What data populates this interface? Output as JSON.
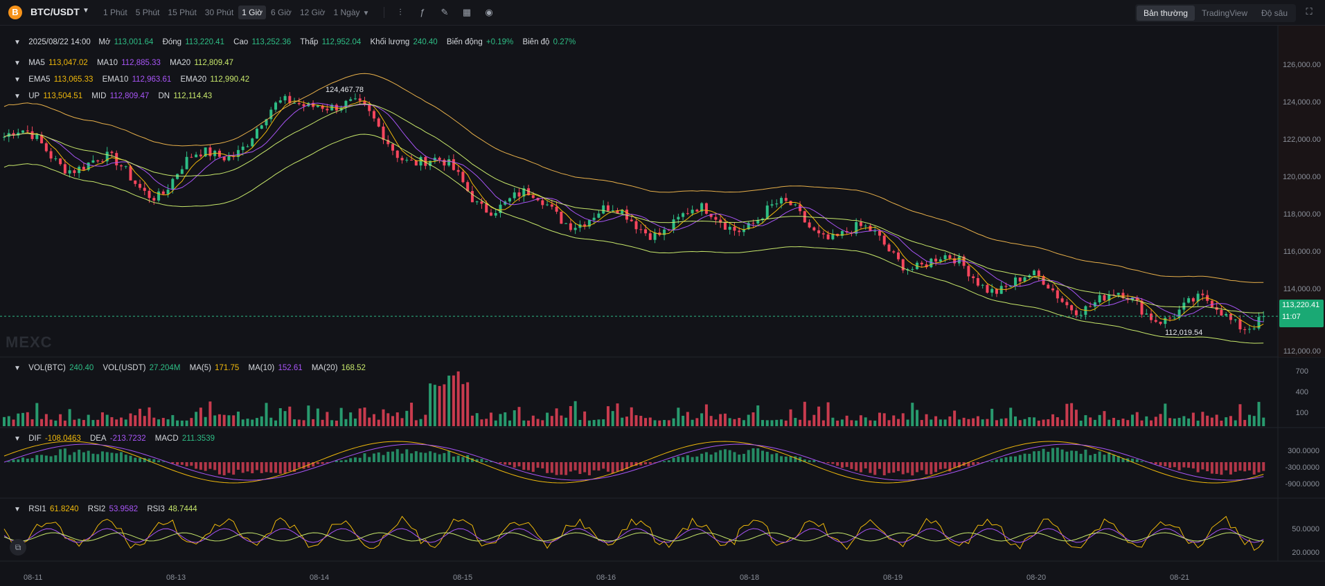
{
  "header": {
    "coin_icon": "B",
    "pair": "BTC/USDT",
    "intervals": [
      "1 Phút",
      "5 Phút",
      "15 Phút",
      "30 Phút",
      "1 Giờ",
      "6 Giờ",
      "12 Giờ",
      "1 Ngày"
    ],
    "active_interval": "1 Giờ",
    "tools": [
      "indicators-icon",
      "formula-icon",
      "draw-icon",
      "layout-icon",
      "screenshot-icon"
    ],
    "modes": [
      "Bản thường",
      "TradingView",
      "Độ sâu"
    ],
    "active_mode": "Bản thường"
  },
  "ohlc": {
    "date": "2025/08/22 14:00",
    "open_label": "Mở",
    "open": "113,001.64",
    "close_label": "Đóng",
    "close": "113,220.41",
    "high_label": "Cao",
    "high": "113,252.36",
    "low_label": "Thấp",
    "low": "112,952.04",
    "vol_label": "Khối lượng",
    "vol": "240.40",
    "change_label": "Biến động",
    "change": "+0.19%",
    "amp_label": "Biên độ",
    "amp": "0.27%"
  },
  "ma": {
    "ma5_label": "MA5",
    "ma5": "113,047.02",
    "ma10_label": "MA10",
    "ma10": "112,885.33",
    "ma20_label": "MA20",
    "ma20": "112,809.47"
  },
  "ema": {
    "ema5_label": "EMA5",
    "ema5": "113,065.33",
    "ema10_label": "EMA10",
    "ema10": "112,963.61",
    "ema20_label": "EMA20",
    "ema20": "112,990.42"
  },
  "boll": {
    "up_label": "UP",
    "up": "113,504.51",
    "mid_label": "MID",
    "mid": "112,809.47",
    "dn_label": "DN",
    "dn": "112,114.43"
  },
  "volume": {
    "vbtc_label": "VOL(BTC)",
    "vbtc": "240.40",
    "vusdt_label": "VOL(USDT)",
    "vusdt": "27.204M",
    "ma5_label": "MA(5)",
    "ma5": "171.75",
    "ma10_label": "MA(10)",
    "ma10": "152.61",
    "ma20_label": "MA(20)",
    "ma20": "168.52"
  },
  "macd": {
    "dif_label": "DIF",
    "dif": "-108.0463",
    "dea_label": "DEA",
    "dea": "-213.7232",
    "macd_label": "MACD",
    "macd": "211.3539"
  },
  "rsi": {
    "rsi1_label": "RSI1",
    "rsi1": "61.8240",
    "rsi2_label": "RSI2",
    "rsi2": "53.9582",
    "rsi3_label": "RSI3",
    "rsi3": "48.7444"
  },
  "price_axis": [
    "126,000.00",
    "124,000.00",
    "122,000.00",
    "120,000.00",
    "118,000.00",
    "116,000.00",
    "114,000.00",
    "112,000.00"
  ],
  "vol_axis": [
    "700",
    "400",
    "100"
  ],
  "macd_axis": [
    "300.0000",
    "-300.0000",
    "-900.0000"
  ],
  "rsi_axis": [
    "50.0000",
    "20.0000"
  ],
  "current_price": "113,220.41",
  "countdown": "11:07",
  "high_marker": "124,467.78",
  "low_marker": "112,019.54",
  "watermark": "MEXC",
  "x_axis": [
    "08-11",
    "08-13",
    "08-14",
    "08-15",
    "08-16",
    "08-18",
    "08-19",
    "08-20",
    "08-21"
  ],
  "colors": {
    "up": "#2ebd85",
    "down": "#f6465d",
    "ma5": "#f0b90b",
    "ma10": "#a855f7",
    "ma20": "#c8e86b",
    "boll": "#e8b04a"
  },
  "chart_data": {
    "type": "candlestick",
    "x": [
      "08-11",
      "08-13",
      "08-14",
      "08-15",
      "08-16",
      "08-18",
      "08-19",
      "08-20",
      "08-21"
    ],
    "close": [
      121500,
      119200,
      123600,
      118800,
      117500,
      117900,
      115400,
      113800,
      113220.41
    ],
    "ylim": [
      111500,
      126500
    ]
  }
}
